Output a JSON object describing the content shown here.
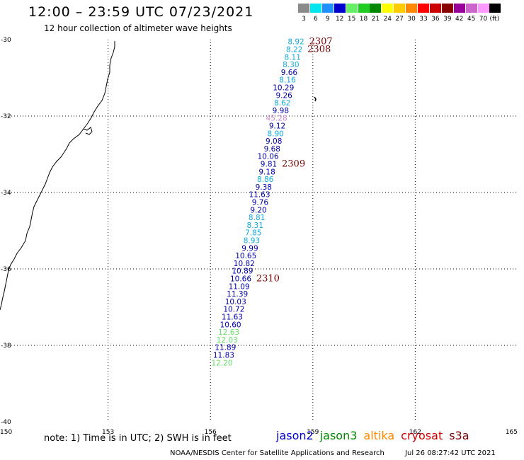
{
  "header": {
    "title": "12:00 – 23:59 UTC 07/23/2021",
    "subtitle": "12 hour collection of altimeter wave heights"
  },
  "colorbar": {
    "unit": "(ft)",
    "bins": [
      {
        "label": "3",
        "color": "#8a8a8a"
      },
      {
        "label": "6",
        "color": "#00e5ee"
      },
      {
        "label": "9",
        "color": "#1e90ff"
      },
      {
        "label": "12",
        "color": "#0000cd"
      },
      {
        "label": "15",
        "color": "#66ee66"
      },
      {
        "label": "18",
        "color": "#22cc22"
      },
      {
        "label": "21",
        "color": "#008800"
      },
      {
        "label": "24",
        "color": "#ffff00"
      },
      {
        "label": "27",
        "color": "#ffcc00"
      },
      {
        "label": "30",
        "color": "#ff8800"
      },
      {
        "label": "33",
        "color": "#ff0000"
      },
      {
        "label": "36",
        "color": "#cc0000"
      },
      {
        "label": "39",
        "color": "#880000"
      },
      {
        "label": "42",
        "color": "#990099"
      },
      {
        "label": "45",
        "color": "#cc66cc"
      },
      {
        "label": "70",
        "color": "#ff99ff"
      },
      {
        "label": "",
        "color": "#000000"
      }
    ]
  },
  "map": {
    "lon_ticks": [
      "150",
      "153",
      "156",
      "159",
      "162",
      "165"
    ],
    "lat_ticks": [
      "-30",
      "-32",
      "-34",
      "-36",
      "-38",
      "-40"
    ],
    "lon_range": [
      150,
      165
    ],
    "lat_range": [
      -30,
      -40
    ],
    "grid": "dotted"
  },
  "observations": [
    {
      "lon": 158.75,
      "lat": -30.05,
      "value": "8.92",
      "color": "#11aadd"
    },
    {
      "lon": 158.7,
      "lat": -30.25,
      "value": "8.22",
      "color": "#11aadd"
    },
    {
      "lon": 158.65,
      "lat": -30.45,
      "value": "8.11",
      "color": "#11aadd"
    },
    {
      "lon": 158.6,
      "lat": -30.65,
      "value": "8.30",
      "color": "#11aadd"
    },
    {
      "lon": 158.55,
      "lat": -30.85,
      "value": "9.66",
      "color": "#0000aa"
    },
    {
      "lon": 158.5,
      "lat": -31.05,
      "value": "8.16",
      "color": "#11aadd"
    },
    {
      "lon": 158.45,
      "lat": -31.25,
      "value": "10.29",
      "color": "#0000aa"
    },
    {
      "lon": 158.4,
      "lat": -31.45,
      "value": "9.26",
      "color": "#0000aa"
    },
    {
      "lon": 158.35,
      "lat": -31.65,
      "value": "8.62",
      "color": "#11aadd"
    },
    {
      "lon": 158.3,
      "lat": -31.85,
      "value": "9.98",
      "color": "#0000aa"
    },
    {
      "lon": 158.25,
      "lat": -32.05,
      "value": "45.28",
      "color": "#cc88cc"
    },
    {
      "lon": 158.2,
      "lat": -32.25,
      "value": "9.12",
      "color": "#0000aa"
    },
    {
      "lon": 158.15,
      "lat": -32.45,
      "value": "8.90",
      "color": "#11aadd"
    },
    {
      "lon": 158.1,
      "lat": -32.65,
      "value": "9.08",
      "color": "#0000aa"
    },
    {
      "lon": 158.05,
      "lat": -32.85,
      "value": "9.68",
      "color": "#0000aa"
    },
    {
      "lon": 158.0,
      "lat": -33.05,
      "value": "10.06",
      "color": "#0000aa"
    },
    {
      "lon": 157.95,
      "lat": -33.25,
      "value": "9.81",
      "color": "#0000aa"
    },
    {
      "lon": 157.9,
      "lat": -33.45,
      "value": "9.18",
      "color": "#0000aa"
    },
    {
      "lon": 157.85,
      "lat": -33.65,
      "value": "8.86",
      "color": "#11aadd"
    },
    {
      "lon": 157.8,
      "lat": -33.85,
      "value": "9.38",
      "color": "#0000aa"
    },
    {
      "lon": 157.75,
      "lat": -34.05,
      "value": "11.63",
      "color": "#0000aa"
    },
    {
      "lon": 157.7,
      "lat": -34.25,
      "value": "9.76",
      "color": "#0000aa"
    },
    {
      "lon": 157.65,
      "lat": -34.45,
      "value": "9.20",
      "color": "#0000aa"
    },
    {
      "lon": 157.6,
      "lat": -34.65,
      "value": "8.81",
      "color": "#11aadd"
    },
    {
      "lon": 157.55,
      "lat": -34.85,
      "value": "8.31",
      "color": "#11aadd"
    },
    {
      "lon": 157.5,
      "lat": -35.05,
      "value": "7.85",
      "color": "#11aadd"
    },
    {
      "lon": 157.45,
      "lat": -35.25,
      "value": "8.93",
      "color": "#11aadd"
    },
    {
      "lon": 157.4,
      "lat": -35.45,
      "value": "9.99",
      "color": "#0000aa"
    },
    {
      "lon": 157.35,
      "lat": -35.65,
      "value": "10.65",
      "color": "#0000aa"
    },
    {
      "lon": 157.3,
      "lat": -35.85,
      "value": "10.82",
      "color": "#0000aa"
    },
    {
      "lon": 157.25,
      "lat": -36.05,
      "value": "10.89",
      "color": "#0000aa"
    },
    {
      "lon": 157.2,
      "lat": -36.25,
      "value": "10.66",
      "color": "#0000aa"
    },
    {
      "lon": 157.15,
      "lat": -36.45,
      "value": "11.09",
      "color": "#0000aa"
    },
    {
      "lon": 157.1,
      "lat": -36.65,
      "value": "11.39",
      "color": "#0000aa"
    },
    {
      "lon": 157.05,
      "lat": -36.85,
      "value": "10.03",
      "color": "#0000aa"
    },
    {
      "lon": 157.0,
      "lat": -37.05,
      "value": "10.72",
      "color": "#0000aa"
    },
    {
      "lon": 156.95,
      "lat": -37.25,
      "value": "11.63",
      "color": "#0000aa"
    },
    {
      "lon": 156.9,
      "lat": -37.45,
      "value": "10.60",
      "color": "#0000aa"
    },
    {
      "lon": 156.85,
      "lat": -37.65,
      "value": "12.63",
      "color": "#66dd66"
    },
    {
      "lon": 156.8,
      "lat": -37.85,
      "value": "12.03",
      "color": "#66dd66"
    },
    {
      "lon": 156.75,
      "lat": -38.05,
      "value": "11.89",
      "color": "#0000aa"
    },
    {
      "lon": 156.7,
      "lat": -38.25,
      "value": "11.83",
      "color": "#0000aa"
    },
    {
      "lon": 156.65,
      "lat": -38.45,
      "value": "12.20",
      "color": "#66dd66"
    }
  ],
  "pass_labels": [
    {
      "lon": 158.85,
      "lat": -30.05,
      "text": "2307"
    },
    {
      "lon": 158.8,
      "lat": -30.25,
      "text": "2308"
    },
    {
      "lon": 158.05,
      "lat": -33.25,
      "text": "2309"
    },
    {
      "lon": 157.3,
      "lat": -36.25,
      "text": "2310"
    }
  ],
  "note": "note:  1) Time is in UTC;  2) SWH is in feet",
  "legend": [
    {
      "name": "jason2",
      "color": "#0000cc"
    },
    {
      "name": "jason3",
      "color": "#008800"
    },
    {
      "name": "altika",
      "color": "#ff8800"
    },
    {
      "name": "cryosat",
      "color": "#cc0000"
    },
    {
      "name": "s3a",
      "color": "#7a0000"
    }
  ],
  "footer": {
    "source": "NOAA/NESDIS Center for Satellite Applications and Research",
    "timestamp": "Jul 26 08:27:42 UTC 2021"
  }
}
